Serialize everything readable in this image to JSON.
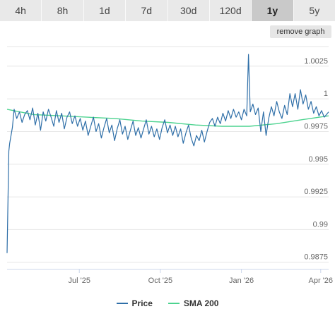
{
  "tabs": [
    {
      "label": "4h",
      "active": false
    },
    {
      "label": "8h",
      "active": false
    },
    {
      "label": "1d",
      "active": false
    },
    {
      "label": "7d",
      "active": false
    },
    {
      "label": "30d",
      "active": false
    },
    {
      "label": "120d",
      "active": false
    },
    {
      "label": "1y",
      "active": true
    },
    {
      "label": "5y",
      "active": false
    }
  ],
  "remove_graph_label": "remove graph",
  "chart_data": {
    "type": "line",
    "title": "",
    "xlabel": "",
    "ylabel": "",
    "x_range": [
      "2025-04-10",
      "2026-04-10"
    ],
    "ylim": [
      0.987,
      1.004
    ],
    "y_ticks": [
      {
        "label": "1.0025",
        "value": 1.0025
      },
      {
        "label": "1",
        "value": 1.0
      },
      {
        "label": "0.9975",
        "value": 0.9975
      },
      {
        "label": "0.995",
        "value": 0.995
      },
      {
        "label": "0.9925",
        "value": 0.9925
      },
      {
        "label": "0.99",
        "value": 0.99
      },
      {
        "label": "0.9875",
        "value": 0.9875
      }
    ],
    "x_ticks": [
      {
        "label": "Jul '25",
        "date": "2025-07-01"
      },
      {
        "label": "Oct '25",
        "date": "2025-10-01"
      },
      {
        "label": "Jan '26",
        "date": "2026-01-01"
      },
      {
        "label": "Apr '26",
        "date": "2026-04-01"
      }
    ],
    "grid": "horizontal",
    "legend_position": "bottom",
    "series": [
      {
        "name": "Price",
        "color": "#2f6fa8",
        "points": [
          [
            "2025-04-10",
            0.9882
          ],
          [
            "2025-04-12",
            0.996
          ],
          [
            "2025-04-13",
            0.9966
          ],
          [
            "2025-04-16",
            0.9978
          ],
          [
            "2025-04-18",
            0.9992
          ],
          [
            "2025-04-21",
            0.9985
          ],
          [
            "2025-04-24",
            0.999
          ],
          [
            "2025-04-27",
            0.9982
          ],
          [
            "2025-04-30",
            0.9988
          ],
          [
            "2025-05-03",
            0.9991
          ],
          [
            "2025-05-06",
            0.9984
          ],
          [
            "2025-05-09",
            0.9993
          ],
          [
            "2025-05-12",
            0.998
          ],
          [
            "2025-05-15",
            0.9989
          ],
          [
            "2025-05-18",
            0.9976
          ],
          [
            "2025-05-21",
            0.999
          ],
          [
            "2025-05-24",
            0.9983
          ],
          [
            "2025-05-27",
            0.9992
          ],
          [
            "2025-05-30",
            0.9986
          ],
          [
            "2025-06-02",
            0.9979
          ],
          [
            "2025-06-05",
            0.9991
          ],
          [
            "2025-06-08",
            0.9982
          ],
          [
            "2025-06-11",
            0.9989
          ],
          [
            "2025-06-14",
            0.9977
          ],
          [
            "2025-06-17",
            0.9986
          ],
          [
            "2025-06-20",
            0.999
          ],
          [
            "2025-06-23",
            0.9981
          ],
          [
            "2025-06-26",
            0.9987
          ],
          [
            "2025-06-29",
            0.9979
          ],
          [
            "2025-07-02",
            0.9985
          ],
          [
            "2025-07-05",
            0.9976
          ],
          [
            "2025-07-08",
            0.9983
          ],
          [
            "2025-07-11",
            0.9972
          ],
          [
            "2025-07-14",
            0.9979
          ],
          [
            "2025-07-17",
            0.9986
          ],
          [
            "2025-07-20",
            0.9975
          ],
          [
            "2025-07-23",
            0.9981
          ],
          [
            "2025-07-26",
            0.997
          ],
          [
            "2025-07-29",
            0.9978
          ],
          [
            "2025-08-01",
            0.9985
          ],
          [
            "2025-08-04",
            0.9974
          ],
          [
            "2025-08-07",
            0.998
          ],
          [
            "2025-08-10",
            0.9968
          ],
          [
            "2025-08-13",
            0.9977
          ],
          [
            "2025-08-16",
            0.9984
          ],
          [
            "2025-08-19",
            0.9973
          ],
          [
            "2025-08-22",
            0.9979
          ],
          [
            "2025-08-25",
            0.9969
          ],
          [
            "2025-08-28",
            0.9976
          ],
          [
            "2025-08-31",
            0.9983
          ],
          [
            "2025-09-03",
            0.9972
          ],
          [
            "2025-09-06",
            0.9978
          ],
          [
            "2025-09-09",
            0.997
          ],
          [
            "2025-09-12",
            0.9977
          ],
          [
            "2025-09-15",
            0.9984
          ],
          [
            "2025-09-18",
            0.9973
          ],
          [
            "2025-09-21",
            0.9979
          ],
          [
            "2025-09-24",
            0.9971
          ],
          [
            "2025-09-27",
            0.9977
          ],
          [
            "2025-09-30",
            0.9969
          ],
          [
            "2025-10-03",
            0.9978
          ],
          [
            "2025-10-06",
            0.9984
          ],
          [
            "2025-10-09",
            0.9974
          ],
          [
            "2025-10-12",
            0.998
          ],
          [
            "2025-10-15",
            0.9972
          ],
          [
            "2025-10-18",
            0.9979
          ],
          [
            "2025-10-21",
            0.9971
          ],
          [
            "2025-10-24",
            0.9977
          ],
          [
            "2025-10-27",
            0.9966
          ],
          [
            "2025-10-30",
            0.9974
          ],
          [
            "2025-11-02",
            0.998
          ],
          [
            "2025-11-05",
            0.997
          ],
          [
            "2025-11-08",
            0.9964
          ],
          [
            "2025-11-11",
            0.9972
          ],
          [
            "2025-11-14",
            0.9968
          ],
          [
            "2025-11-17",
            0.9976
          ],
          [
            "2025-11-20",
            0.9967
          ],
          [
            "2025-11-23",
            0.9975
          ],
          [
            "2025-11-26",
            0.9982
          ],
          [
            "2025-11-29",
            0.9985
          ],
          [
            "2025-12-02",
            0.9979
          ],
          [
            "2025-12-05",
            0.9986
          ],
          [
            "2025-12-08",
            0.9981
          ],
          [
            "2025-12-11",
            0.9989
          ],
          [
            "2025-12-14",
            0.9983
          ],
          [
            "2025-12-17",
            0.9991
          ],
          [
            "2025-12-20",
            0.9985
          ],
          [
            "2025-12-23",
            0.9992
          ],
          [
            "2025-12-26",
            0.9986
          ],
          [
            "2025-12-29",
            0.999
          ],
          [
            "2026-01-01",
            0.9984
          ],
          [
            "2026-01-04",
            0.9992
          ],
          [
            "2026-01-07",
            0.9987
          ],
          [
            "2026-01-09",
            1.0034
          ],
          [
            "2026-01-11",
            0.999
          ],
          [
            "2026-01-14",
            0.9996
          ],
          [
            "2026-01-17",
            0.9988
          ],
          [
            "2026-01-20",
            0.9993
          ],
          [
            "2026-01-23",
            0.9975
          ],
          [
            "2026-01-26",
            0.999
          ],
          [
            "2026-01-29",
            0.9972
          ],
          [
            "2026-02-01",
            0.9985
          ],
          [
            "2026-02-04",
            0.9994
          ],
          [
            "2026-02-07",
            0.9987
          ],
          [
            "2026-02-10",
            0.9998
          ],
          [
            "2026-02-13",
            0.999
          ],
          [
            "2026-02-16",
            0.9985
          ],
          [
            "2026-02-19",
            0.9995
          ],
          [
            "2026-02-22",
            0.9988
          ],
          [
            "2026-02-25",
            1.0004
          ],
          [
            "2026-02-28",
            0.9994
          ],
          [
            "2026-03-03",
            1.0004
          ],
          [
            "2026-03-06",
            0.9992
          ],
          [
            "2026-03-09",
            1.0007
          ],
          [
            "2026-03-12",
            0.9996
          ],
          [
            "2026-03-15",
            1.0003
          ],
          [
            "2026-03-18",
            0.9992
          ],
          [
            "2026-03-21",
            0.9998
          ],
          [
            "2026-03-24",
            0.9989
          ],
          [
            "2026-03-27",
            0.9994
          ],
          [
            "2026-03-30",
            0.9987
          ],
          [
            "2026-04-02",
            0.9991
          ],
          [
            "2026-04-05",
            0.9986
          ],
          [
            "2026-04-10",
            0.999
          ]
        ]
      },
      {
        "name": "SMA 200",
        "color": "#4cd38f",
        "points": [
          [
            "2025-04-10",
            0.9992
          ],
          [
            "2025-05-10",
            0.9988
          ],
          [
            "2025-06-10",
            0.9987
          ],
          [
            "2025-07-10",
            0.9986
          ],
          [
            "2025-08-10",
            0.9985
          ],
          [
            "2025-09-10",
            0.9983
          ],
          [
            "2025-10-10",
            0.9982
          ],
          [
            "2025-11-10",
            0.998
          ],
          [
            "2025-12-10",
            0.9979
          ],
          [
            "2026-01-10",
            0.9979
          ],
          [
            "2026-02-10",
            0.9981
          ],
          [
            "2026-03-10",
            0.9984
          ],
          [
            "2026-04-10",
            0.9987
          ]
        ]
      }
    ]
  }
}
